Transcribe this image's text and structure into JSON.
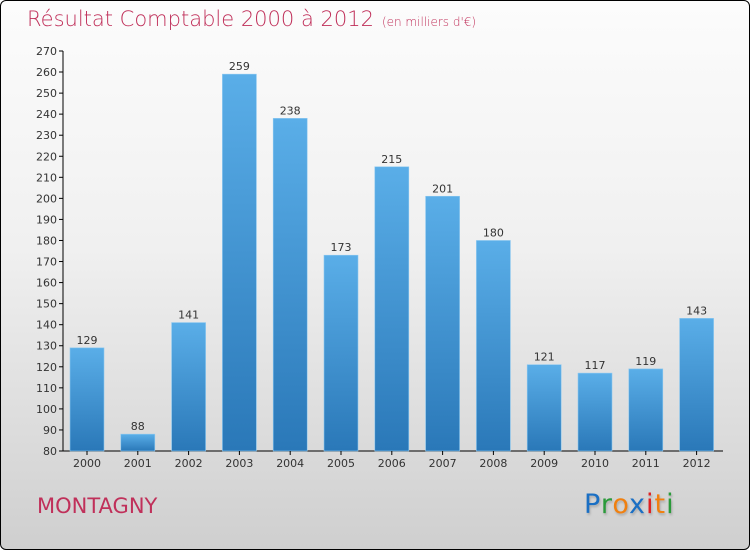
{
  "chart_data": {
    "type": "bar",
    "title": "Résultat Comptable 2000 à 2012",
    "subtitle": "(en milliers d'€)",
    "categories": [
      "2000",
      "2001",
      "2002",
      "2003",
      "2004",
      "2005",
      "2006",
      "2007",
      "2008",
      "2009",
      "2010",
      "2011",
      "2012"
    ],
    "values": [
      129,
      88,
      141,
      259,
      238,
      173,
      215,
      201,
      180,
      121,
      117,
      119,
      143
    ],
    "ylim": [
      80,
      270
    ],
    "ytick_step": 10,
    "xlabel": "",
    "ylabel": "",
    "bar_color_top": "#5aaee8",
    "bar_color_bottom": "#2a78b8"
  },
  "location": "MONTAGNY",
  "logo": {
    "text": "Proxiti",
    "letters": [
      "P",
      "r",
      "o",
      "x",
      "i",
      "t",
      "i"
    ],
    "colors": [
      "#1a6fc4",
      "#2a9a3a",
      "#f08010",
      "#1a6fc4",
      "#e02020",
      "#f08010",
      "#2a9a3a"
    ]
  }
}
